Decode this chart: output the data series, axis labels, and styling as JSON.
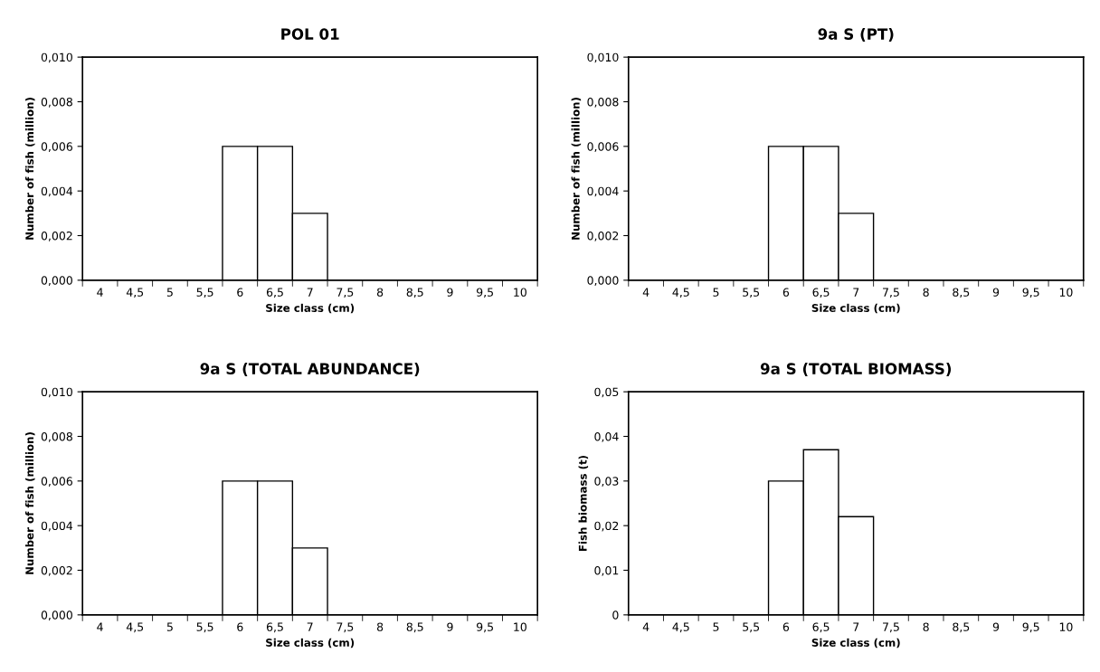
{
  "chart_data": [
    {
      "type": "bar",
      "title": "POL 01",
      "xlabel": "Size class (cm)",
      "ylabel": "Number of fish (million)",
      "categories": [
        "4",
        "4,5",
        "5",
        "5,5",
        "6",
        "6,5",
        "7",
        "7,5",
        "8",
        "8,5",
        "9",
        "9,5",
        "10"
      ],
      "values": [
        0,
        0,
        0,
        0,
        0.006,
        0.006,
        0.003,
        0,
        0,
        0,
        0,
        0,
        0
      ],
      "color": "#ffffff",
      "ylim": [
        0,
        0.01
      ],
      "yticks": [
        {
          "value": 0,
          "label": "0,000"
        },
        {
          "value": 0.002,
          "label": "0,002"
        },
        {
          "value": 0.004,
          "label": "0,004"
        },
        {
          "value": 0.006,
          "label": "0,006"
        },
        {
          "value": 0.008,
          "label": "0,008"
        },
        {
          "value": 0.01,
          "label": "0,010"
        }
      ]
    },
    {
      "type": "bar",
      "title": "9a S (PT)",
      "xlabel": "Size class (cm)",
      "ylabel": "Number of fish (million)",
      "categories": [
        "4",
        "4,5",
        "5",
        "5,5",
        "6",
        "6,5",
        "7",
        "7,5",
        "8",
        "8,5",
        "9",
        "9,5",
        "10"
      ],
      "values": [
        0,
        0,
        0,
        0,
        0.006,
        0.006,
        0.003,
        0,
        0,
        0,
        0,
        0,
        0
      ],
      "color": "#ffffff",
      "ylim": [
        0,
        0.01
      ],
      "yticks": [
        {
          "value": 0,
          "label": "0,000"
        },
        {
          "value": 0.002,
          "label": "0,002"
        },
        {
          "value": 0.004,
          "label": "0,004"
        },
        {
          "value": 0.006,
          "label": "0,006"
        },
        {
          "value": 0.008,
          "label": "0,008"
        },
        {
          "value": 0.01,
          "label": "0,010"
        }
      ]
    },
    {
      "type": "bar",
      "title": "9a S (TOTAL ABUNDANCE)",
      "xlabel": "Size class (cm)",
      "ylabel": "Number of fish (million)",
      "categories": [
        "4",
        "4,5",
        "5",
        "5,5",
        "6",
        "6,5",
        "7",
        "7,5",
        "8",
        "8,5",
        "9",
        "9,5",
        "10"
      ],
      "values": [
        0,
        0,
        0,
        0,
        0.006,
        0.006,
        0.003,
        0,
        0,
        0,
        0,
        0,
        0
      ],
      "color": "#ffffff",
      "ylim": [
        0,
        0.01
      ],
      "yticks": [
        {
          "value": 0,
          "label": "0,000"
        },
        {
          "value": 0.002,
          "label": "0,002"
        },
        {
          "value": 0.004,
          "label": "0,004"
        },
        {
          "value": 0.006,
          "label": "0,006"
        },
        {
          "value": 0.008,
          "label": "0,008"
        },
        {
          "value": 0.01,
          "label": "0,010"
        }
      ]
    },
    {
      "type": "bar",
      "title": "9a S (TOTAL BIOMASS)",
      "xlabel": "Size class (cm)",
      "ylabel": "Fish biomass (t)",
      "categories": [
        "4",
        "4,5",
        "5",
        "5,5",
        "6",
        "6,5",
        "7",
        "7,5",
        "8",
        "8,5",
        "9",
        "9,5",
        "10"
      ],
      "values": [
        0,
        0,
        0,
        0,
        0.03,
        0.037,
        0.022,
        0,
        0,
        0,
        0,
        0,
        0
      ],
      "color": "#ffffff",
      "ylim": [
        0,
        0.05
      ],
      "yticks": [
        0,
        {
          "value": 0.01,
          "label": "0,01"
        },
        {
          "value": 0.02,
          "label": "0,02"
        },
        {
          "value": 0.03,
          "label": "0,03"
        },
        {
          "value": 0.04,
          "label": "0,04"
        },
        {
          "value": 0.05,
          "label": "0,05"
        }
      ]
    }
  ]
}
